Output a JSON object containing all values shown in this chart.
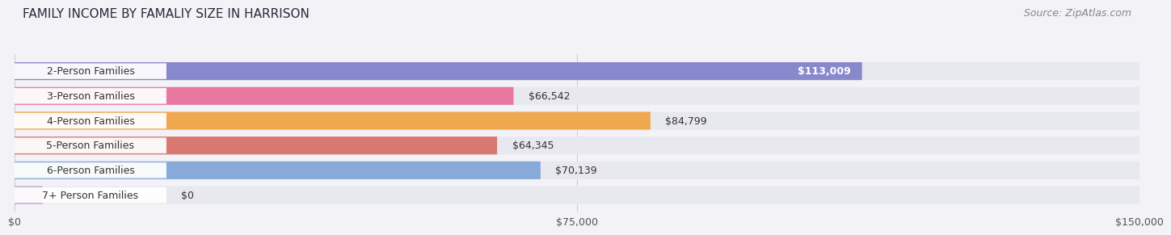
{
  "title": "FAMILY INCOME BY FAMALIY SIZE IN HARRISON",
  "source": "Source: ZipAtlas.com",
  "categories": [
    "2-Person Families",
    "3-Person Families",
    "4-Person Families",
    "5-Person Families",
    "6-Person Families",
    "7+ Person Families"
  ],
  "values": [
    113009,
    66542,
    84799,
    64345,
    70139,
    0
  ],
  "bar_colors": [
    "#8888cc",
    "#e878a0",
    "#f0a850",
    "#d87870",
    "#88aad8",
    "#c0a0cc"
  ],
  "label_texts": [
    "$113,009",
    "$66,542",
    "$84,799",
    "$64,345",
    "$70,139",
    "$0"
  ],
  "label_inside": [
    true,
    false,
    false,
    false,
    false,
    false
  ],
  "xlim": [
    0,
    150000
  ],
  "xticks": [
    0,
    75000,
    150000
  ],
  "xtick_labels": [
    "$0",
    "$75,000",
    "$150,000"
  ],
  "background_color": "#f2f2f7",
  "bar_bg_color": "#e8e8ef",
  "title_fontsize": 11,
  "source_fontsize": 9,
  "label_fontsize": 9,
  "category_fontsize": 9
}
